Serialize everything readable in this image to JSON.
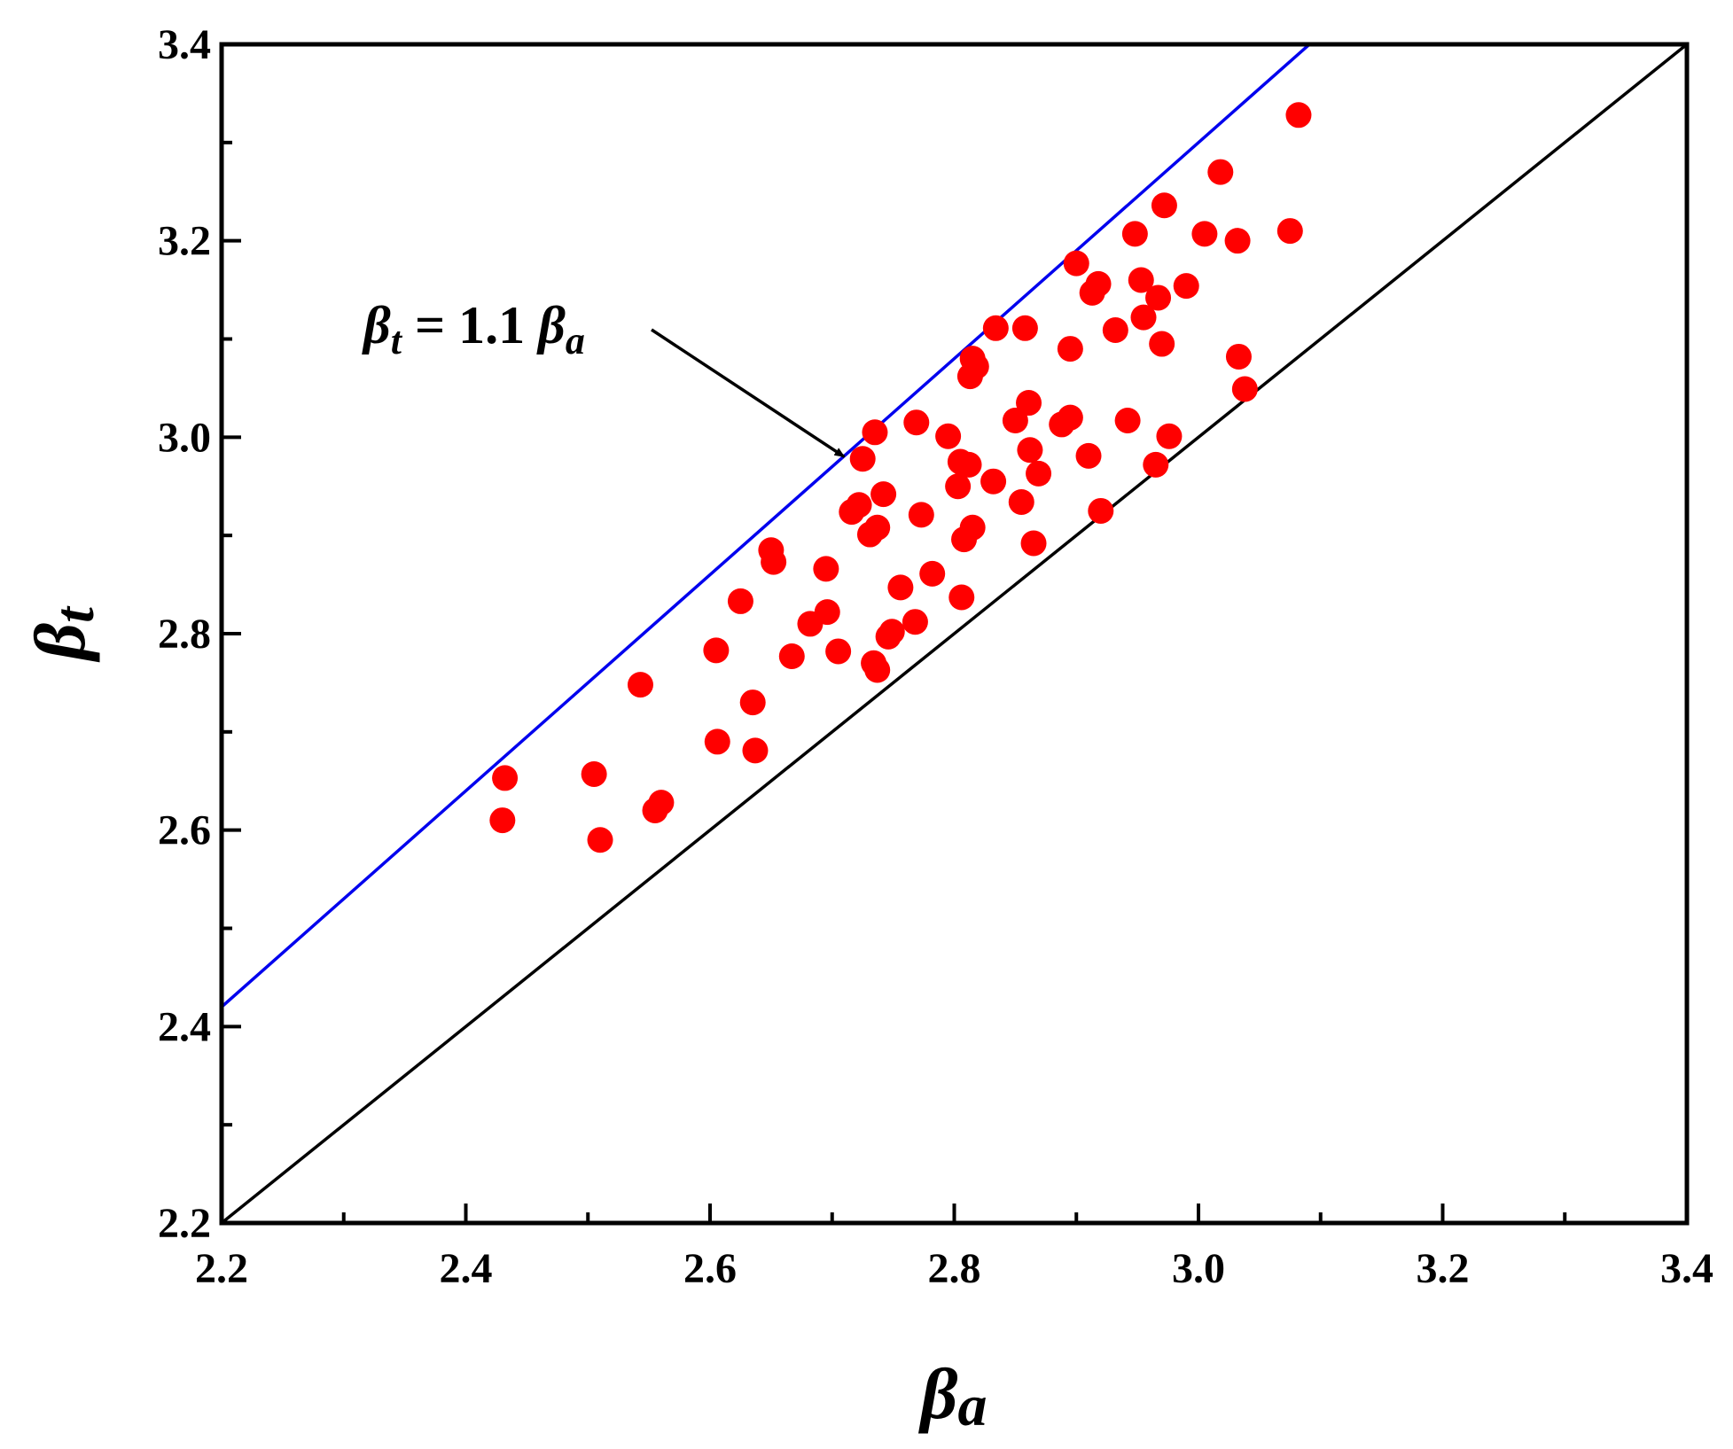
{
  "chart_data": {
    "type": "scatter",
    "title": "",
    "xlabel": {
      "symbol": "β",
      "subscript": "a"
    },
    "ylabel": {
      "symbol": "β",
      "subscript": "t"
    },
    "xlim": [
      2.2,
      3.4
    ],
    "ylim": [
      2.2,
      3.4
    ],
    "x_ticks": [
      "2.2",
      "2.4",
      "2.6",
      "2.8",
      "3.0",
      "3.2",
      "3.4"
    ],
    "y_ticks": [
      "2.2",
      "2.4",
      "2.6",
      "2.8",
      "3.0",
      "3.2",
      "3.4"
    ],
    "grid": false,
    "colors": {
      "points": "#ff0000",
      "upper_line": "#0000ee",
      "reference_line": "#000000"
    },
    "lines": [
      {
        "name": "upper-bound",
        "slope": 1.1,
        "intercept": 0,
        "color": "#0000ee"
      },
      {
        "name": "equality",
        "slope": 1.0,
        "intercept": 0,
        "color": "#000000"
      }
    ],
    "annotation": {
      "parts": [
        "β",
        "t",
        " = 1.1 ",
        "β",
        "a"
      ],
      "points_to": [
        2.71,
        2.98
      ]
    },
    "series": [
      {
        "name": "data",
        "points": [
          [
            2.43,
            2.61
          ],
          [
            2.432,
            2.653
          ],
          [
            2.505,
            2.657
          ],
          [
            2.51,
            2.59
          ],
          [
            2.543,
            2.748
          ],
          [
            2.555,
            2.62
          ],
          [
            2.56,
            2.628
          ],
          [
            2.606,
            2.69
          ],
          [
            2.605,
            2.783
          ],
          [
            2.625,
            2.833
          ],
          [
            2.635,
            2.73
          ],
          [
            2.637,
            2.681
          ],
          [
            2.65,
            2.885
          ],
          [
            2.652,
            2.873
          ],
          [
            2.667,
            2.777
          ],
          [
            2.682,
            2.81
          ],
          [
            2.695,
            2.866
          ],
          [
            2.696,
            2.822
          ],
          [
            2.705,
            2.782
          ],
          [
            2.716,
            2.924
          ],
          [
            2.722,
            2.931
          ],
          [
            2.725,
            2.978
          ],
          [
            2.731,
            2.901
          ],
          [
            2.734,
            2.77
          ],
          [
            2.737,
            2.763
          ],
          [
            2.737,
            2.908
          ],
          [
            2.735,
            3.005
          ],
          [
            2.742,
            2.942
          ],
          [
            2.746,
            2.797
          ],
          [
            2.749,
            2.802
          ],
          [
            2.756,
            2.847
          ],
          [
            2.768,
            2.812
          ],
          [
            2.769,
            3.015
          ],
          [
            2.773,
            2.921
          ],
          [
            2.782,
            2.861
          ],
          [
            2.795,
            3.001
          ],
          [
            2.803,
            2.95
          ],
          [
            2.805,
            2.975
          ],
          [
            2.806,
            2.837
          ],
          [
            2.808,
            2.896
          ],
          [
            2.812,
            2.972
          ],
          [
            2.815,
            2.908
          ],
          [
            2.813,
            3.062
          ],
          [
            2.815,
            3.08
          ],
          [
            2.818,
            3.072
          ],
          [
            2.832,
            2.955
          ],
          [
            2.834,
            3.111
          ],
          [
            2.85,
            3.017
          ],
          [
            2.855,
            2.934
          ],
          [
            2.858,
            3.111
          ],
          [
            2.861,
            3.035
          ],
          [
            2.862,
            2.987
          ],
          [
            2.865,
            2.892
          ],
          [
            2.869,
            2.963
          ],
          [
            2.888,
            3.013
          ],
          [
            2.895,
            3.02
          ],
          [
            2.895,
            3.09
          ],
          [
            2.9,
            3.177
          ],
          [
            2.91,
            2.981
          ],
          [
            2.913,
            3.147
          ],
          [
            2.918,
            3.156
          ],
          [
            2.92,
            2.925
          ],
          [
            2.932,
            3.109
          ],
          [
            2.942,
            3.017
          ],
          [
            2.948,
            3.207
          ],
          [
            2.953,
            3.16
          ],
          [
            2.955,
            3.122
          ],
          [
            2.965,
            2.972
          ],
          [
            2.967,
            3.142
          ],
          [
            2.97,
            3.095
          ],
          [
            2.972,
            3.236
          ],
          [
            2.976,
            3.001
          ],
          [
            2.99,
            3.154
          ],
          [
            3.005,
            3.207
          ],
          [
            3.018,
            3.27
          ],
          [
            3.032,
            3.2
          ],
          [
            3.033,
            3.082
          ],
          [
            3.038,
            3.049
          ],
          [
            3.075,
            3.21
          ],
          [
            3.082,
            3.328
          ]
        ]
      }
    ]
  }
}
